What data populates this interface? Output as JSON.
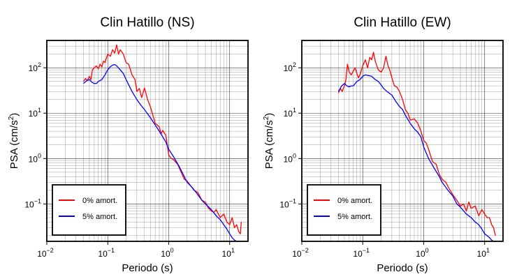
{
  "chart_data": [
    {
      "type": "line",
      "title": "Clin Hatillo (NS)",
      "xlabel": "Periodo (s)",
      "ylabel_base": "PSA (cm/s",
      "ylabel_sup": "2",
      "ylabel_close": ")",
      "xscale": "log",
      "yscale": "log",
      "xlim": [
        0.01,
        20
      ],
      "ylim": [
        0.015,
        400
      ],
      "grid": true,
      "legend_position": "bottom-left",
      "x_ticks": [
        {
          "value": 0.01,
          "base": "10",
          "exp": "−2"
        },
        {
          "value": 0.1,
          "base": "10",
          "exp": "−1"
        },
        {
          "value": 1,
          "base": "10",
          "exp": "0"
        },
        {
          "value": 10,
          "base": "10",
          "exp": "1"
        }
      ],
      "y_ticks": [
        {
          "value": 0.1,
          "base": "10",
          "exp": "−1"
        },
        {
          "value": 1,
          "base": "10",
          "exp": "0"
        },
        {
          "value": 10,
          "base": "10",
          "exp": "1"
        },
        {
          "value": 100,
          "base": "10",
          "exp": "2"
        }
      ],
      "series": [
        {
          "name": "0% amort.",
          "color": "#ff0000",
          "points": [
            [
              0.04,
              50
            ],
            [
              0.043,
              58
            ],
            [
              0.046,
              52
            ],
            [
              0.05,
              65
            ],
            [
              0.053,
              55
            ],
            [
              0.056,
              90
            ],
            [
              0.06,
              100
            ],
            [
              0.065,
              110
            ],
            [
              0.07,
              95
            ],
            [
              0.075,
              120
            ],
            [
              0.08,
              105
            ],
            [
              0.085,
              140
            ],
            [
              0.09,
              130
            ],
            [
              0.1,
              200
            ],
            [
              0.11,
              180
            ],
            [
              0.12,
              250
            ],
            [
              0.13,
              210
            ],
            [
              0.14,
              320
            ],
            [
              0.15,
              200
            ],
            [
              0.16,
              250
            ],
            [
              0.18,
              200
            ],
            [
              0.2,
              130
            ],
            [
              0.22,
              120
            ],
            [
              0.25,
              70
            ],
            [
              0.28,
              55
            ],
            [
              0.3,
              30
            ],
            [
              0.33,
              35
            ],
            [
              0.36,
              22
            ],
            [
              0.4,
              36
            ],
            [
              0.45,
              20
            ],
            [
              0.5,
              14
            ],
            [
              0.55,
              9
            ],
            [
              0.6,
              6
            ],
            [
              0.7,
              5
            ],
            [
              0.75,
              3.5
            ],
            [
              0.8,
              4.2
            ],
            [
              0.9,
              3.2
            ],
            [
              1.0,
              1.2
            ],
            [
              1.1,
              1.0
            ],
            [
              1.2,
              0.95
            ],
            [
              1.4,
              0.75
            ],
            [
              1.6,
              0.5
            ],
            [
              1.8,
              0.35
            ],
            [
              2.0,
              0.32
            ],
            [
              2.3,
              0.25
            ],
            [
              2.6,
              0.2
            ],
            [
              3.0,
              0.18
            ],
            [
              3.5,
              0.12
            ],
            [
              4,
              0.11
            ],
            [
              4.5,
              0.08
            ],
            [
              5,
              0.07
            ],
            [
              5.5,
              0.065
            ],
            [
              6,
              0.075
            ],
            [
              7,
              0.05
            ],
            [
              8,
              0.06
            ],
            [
              9,
              0.04
            ],
            [
              10,
              0.035
            ],
            [
              11,
              0.05
            ],
            [
              12,
              0.03
            ],
            [
              13,
              0.035
            ],
            [
              14,
              0.025
            ],
            [
              15,
              0.022
            ],
            [
              15.5,
              0.04
            ]
          ]
        },
        {
          "name": "5% amort.",
          "color": "#0000ff",
          "points": [
            [
              0.04,
              45
            ],
            [
              0.045,
              52
            ],
            [
              0.05,
              55
            ],
            [
              0.055,
              48
            ],
            [
              0.06,
              45
            ],
            [
              0.065,
              45
            ],
            [
              0.07,
              50
            ],
            [
              0.08,
              55
            ],
            [
              0.09,
              70
            ],
            [
              0.1,
              90
            ],
            [
              0.11,
              105
            ],
            [
              0.12,
              115
            ],
            [
              0.13,
              118
            ],
            [
              0.14,
              110
            ],
            [
              0.16,
              90
            ],
            [
              0.18,
              75
            ],
            [
              0.2,
              55
            ],
            [
              0.25,
              30
            ],
            [
              0.3,
              20
            ],
            [
              0.35,
              15
            ],
            [
              0.4,
              12
            ],
            [
              0.5,
              8
            ],
            [
              0.6,
              5.5
            ],
            [
              0.7,
              4
            ],
            [
              0.8,
              3
            ],
            [
              0.9,
              2.3
            ],
            [
              1.0,
              1.6
            ],
            [
              1.2,
              1.1
            ],
            [
              1.5,
              0.65
            ],
            [
              1.8,
              0.4
            ],
            [
              2.0,
              0.3
            ],
            [
              2.5,
              0.22
            ],
            [
              3.0,
              0.16
            ],
            [
              3.5,
              0.12
            ],
            [
              4,
              0.1
            ],
            [
              5,
              0.075
            ],
            [
              6,
              0.055
            ],
            [
              7,
              0.045
            ],
            [
              8,
              0.035
            ],
            [
              9,
              0.028
            ],
            [
              10,
              0.022
            ],
            [
              11,
              0.018
            ],
            [
              12,
              0.016
            ],
            [
              13,
              0.015
            ],
            [
              14,
              0.015
            ],
            [
              15,
              0.015
            ]
          ]
        }
      ]
    },
    {
      "type": "line",
      "title": "Clin Hatillo (EW)",
      "xlabel": "Periodo (s)",
      "ylabel_base": "PSA (cm/s",
      "ylabel_sup": "2",
      "ylabel_close": ")",
      "xscale": "log",
      "yscale": "log",
      "xlim": [
        0.01,
        20
      ],
      "ylim": [
        0.015,
        400
      ],
      "grid": true,
      "legend_position": "bottom-left",
      "x_ticks": [
        {
          "value": 0.01,
          "base": "10",
          "exp": "−2"
        },
        {
          "value": 0.1,
          "base": "10",
          "exp": "−1"
        },
        {
          "value": 1,
          "base": "10",
          "exp": "0"
        },
        {
          "value": 10,
          "base": "10",
          "exp": "1"
        }
      ],
      "y_ticks": [
        {
          "value": 0.1,
          "base": "10",
          "exp": "−1"
        },
        {
          "value": 1,
          "base": "10",
          "exp": "0"
        },
        {
          "value": 10,
          "base": "10",
          "exp": "1"
        },
        {
          "value": 100,
          "base": "10",
          "exp": "2"
        }
      ],
      "series": [
        {
          "name": "0% amort.",
          "color": "#ff0000",
          "points": [
            [
              0.04,
              28
            ],
            [
              0.043,
              35
            ],
            [
              0.046,
              30
            ],
            [
              0.05,
              40
            ],
            [
              0.053,
              55
            ],
            [
              0.056,
              120
            ],
            [
              0.06,
              80
            ],
            [
              0.065,
              70
            ],
            [
              0.07,
              85
            ],
            [
              0.075,
              100
            ],
            [
              0.08,
              75
            ],
            [
              0.085,
              60
            ],
            [
              0.09,
              70
            ],
            [
              0.1,
              110
            ],
            [
              0.11,
              150
            ],
            [
              0.12,
              100
            ],
            [
              0.13,
              170
            ],
            [
              0.14,
              150
            ],
            [
              0.15,
              220
            ],
            [
              0.16,
              140
            ],
            [
              0.18,
              90
            ],
            [
              0.2,
              80
            ],
            [
              0.22,
              100
            ],
            [
              0.24,
              180
            ],
            [
              0.26,
              110
            ],
            [
              0.28,
              85
            ],
            [
              0.3,
              60
            ],
            [
              0.33,
              40
            ],
            [
              0.36,
              38
            ],
            [
              0.4,
              30
            ],
            [
              0.45,
              20
            ],
            [
              0.5,
              12
            ],
            [
              0.55,
              10
            ],
            [
              0.6,
              7
            ],
            [
              0.7,
              7.5
            ],
            [
              0.8,
              6
            ],
            [
              0.9,
              4
            ],
            [
              1.0,
              2.5
            ],
            [
              1.1,
              2.2
            ],
            [
              1.2,
              1.6
            ],
            [
              1.4,
              0.85
            ],
            [
              1.6,
              0.75
            ],
            [
              1.8,
              0.45
            ],
            [
              2.0,
              0.35
            ],
            [
              2.3,
              0.3
            ],
            [
              2.6,
              0.22
            ],
            [
              3.0,
              0.16
            ],
            [
              3.5,
              0.12
            ],
            [
              4,
              0.09
            ],
            [
              4.5,
              0.1
            ],
            [
              5,
              0.07
            ],
            [
              5.5,
              0.11
            ],
            [
              6,
              0.08
            ],
            [
              7,
              0.09
            ],
            [
              8,
              0.055
            ],
            [
              9,
              0.075
            ],
            [
              10,
              0.06
            ],
            [
              11,
              0.05
            ],
            [
              12,
              0.05
            ],
            [
              13,
              0.035
            ],
            [
              14,
              0.03
            ],
            [
              15,
              0.02
            ]
          ]
        },
        {
          "name": "5% amort.",
          "color": "#0000ff",
          "points": [
            [
              0.04,
              30
            ],
            [
              0.045,
              40
            ],
            [
              0.05,
              45
            ],
            [
              0.055,
              40
            ],
            [
              0.06,
              38
            ],
            [
              0.065,
              40
            ],
            [
              0.07,
              40
            ],
            [
              0.08,
              50
            ],
            [
              0.09,
              55
            ],
            [
              0.1,
              65
            ],
            [
              0.11,
              70
            ],
            [
              0.12,
              68
            ],
            [
              0.14,
              65
            ],
            [
              0.16,
              55
            ],
            [
              0.18,
              50
            ],
            [
              0.2,
              42
            ],
            [
              0.22,
              35
            ],
            [
              0.25,
              30
            ],
            [
              0.3,
              25
            ],
            [
              0.35,
              18
            ],
            [
              0.4,
              14
            ],
            [
              0.45,
              12
            ],
            [
              0.5,
              9
            ],
            [
              0.6,
              6
            ],
            [
              0.7,
              4.5
            ],
            [
              0.8,
              3.8
            ],
            [
              0.9,
              3
            ],
            [
              1.0,
              1.8
            ],
            [
              1.2,
              1.0
            ],
            [
              1.5,
              0.6
            ],
            [
              1.8,
              0.4
            ],
            [
              2.0,
              0.3
            ],
            [
              2.5,
              0.2
            ],
            [
              3.0,
              0.15
            ],
            [
              3.5,
              0.1
            ],
            [
              4,
              0.085
            ],
            [
              5,
              0.06
            ],
            [
              6,
              0.05
            ],
            [
              7,
              0.04
            ],
            [
              8,
              0.035
            ],
            [
              9,
              0.028
            ],
            [
              10,
              0.022
            ],
            [
              11,
              0.02
            ],
            [
              12,
              0.018
            ],
            [
              13,
              0.016
            ],
            [
              14,
              0.015
            ],
            [
              15,
              0.015
            ]
          ]
        }
      ]
    }
  ]
}
